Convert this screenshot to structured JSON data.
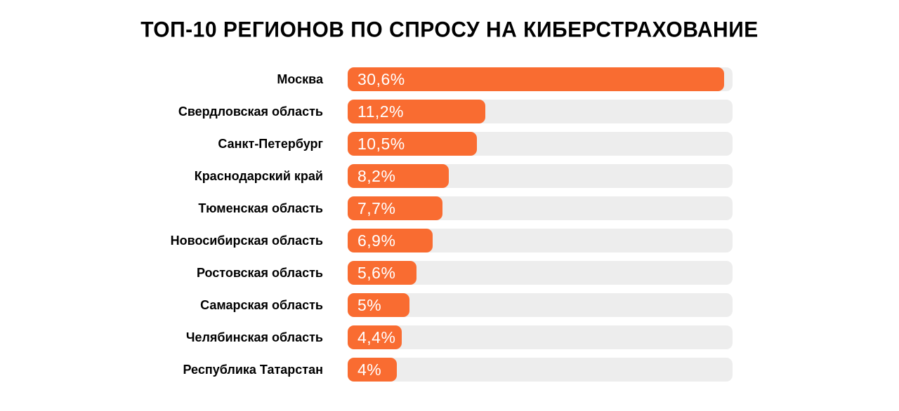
{
  "title": "ТОП-10 РЕГИОНОВ ПО СПРОСУ НА КИБЕРСТРАХОВАНИЕ",
  "colors": {
    "background": "#FFFFFF",
    "bar_fill": "#F96C31",
    "bar_track": "#EDEDED",
    "label_text": "#000000",
    "value_text": "#FFFFFF"
  },
  "chart_data": {
    "type": "bar",
    "orientation": "horizontal",
    "title": "ТОП-10 РЕГИОНОВ ПО СПРОСУ НА КИБЕРСТРАХОВАНИЕ",
    "categories": [
      "Москва",
      "Свердловская область",
      "Санкт-Петербург",
      "Краснодарский край",
      "Тюменская область",
      "Новосибирская область",
      "Ростовская область",
      "Самарская область",
      "Челябинская область",
      "Республика Татарстан"
    ],
    "values": [
      30.6,
      11.2,
      10.5,
      8.2,
      7.7,
      6.9,
      5.6,
      5,
      4.4,
      4
    ],
    "value_labels": [
      "30,6%",
      "11,2%",
      "10,5%",
      "8,2%",
      "7,7%",
      "6,9%",
      "5,6%",
      "5%",
      "4,4%",
      "4%"
    ],
    "xlabel": "",
    "ylabel": "",
    "xlim": [
      0,
      31.3
    ],
    "grid": false,
    "legend": false,
    "value_label_position": "inside-left"
  }
}
